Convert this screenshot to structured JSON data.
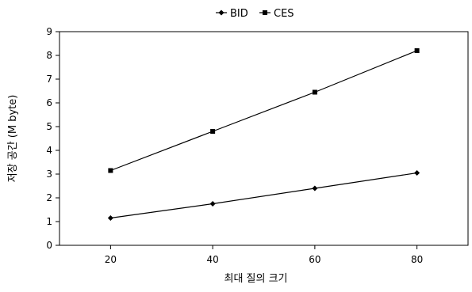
{
  "chart_data": {
    "type": "line",
    "x": [
      20,
      40,
      60,
      80
    ],
    "series": [
      {
        "name": "BID",
        "values": [
          1.15,
          1.75,
          2.4,
          3.05
        ],
        "marker": "diamond",
        "color": "#000000"
      },
      {
        "name": "CES",
        "values": [
          3.15,
          4.8,
          6.45,
          8.2
        ],
        "marker": "square",
        "color": "#000000"
      }
    ],
    "xlabel": "최대 질의 크기",
    "ylabel": "저장 공간 (M byte)",
    "xlim": [
      10,
      90
    ],
    "ylim": [
      0,
      9
    ],
    "yticks": [
      0,
      1,
      2,
      3,
      4,
      5,
      6,
      7,
      8,
      9
    ],
    "xticks": [
      20,
      40,
      60,
      80
    ],
    "legend_position": "top-center",
    "grid": false
  }
}
